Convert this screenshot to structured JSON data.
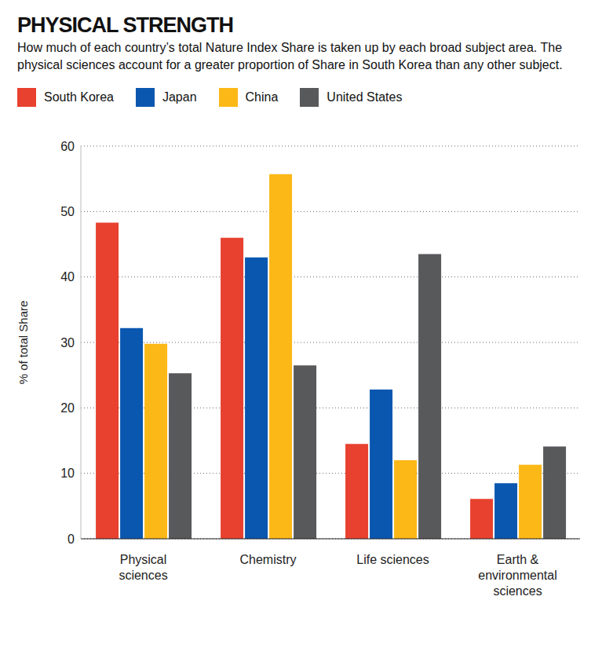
{
  "chart_data": {
    "type": "bar",
    "title": "PHYSICAL STRENGTH",
    "subtitle": "How much of each country’s total Nature Index Share is taken up by each broad subject area. The physical sciences account for a greater proportion of Share in South Korea than any other subject.",
    "y_label": "% of total Share",
    "categories": [
      "Physical sciences",
      "Chemistry",
      "Life sciences",
      "Earth & environmental sciences"
    ],
    "series": [
      {
        "name": "South Korea",
        "color": "#e8412f",
        "values": [
          48.3,
          46,
          14.5,
          6.1
        ]
      },
      {
        "name": "Japan",
        "color": "#0a57b0",
        "values": [
          32.2,
          43,
          22.8,
          8.5
        ]
      },
      {
        "name": "China",
        "color": "#fbb817",
        "values": [
          29.8,
          55.7,
          12,
          11.3
        ]
      },
      {
        "name": "United States",
        "color": "#58595b",
        "values": [
          25.3,
          26.5,
          43.5,
          14.1
        ]
      }
    ],
    "ylim": [
      0,
      60
    ],
    "yticks": [
      0,
      10,
      20,
      30,
      40,
      50,
      60
    ],
    "grid": true,
    "legend": "top"
  }
}
